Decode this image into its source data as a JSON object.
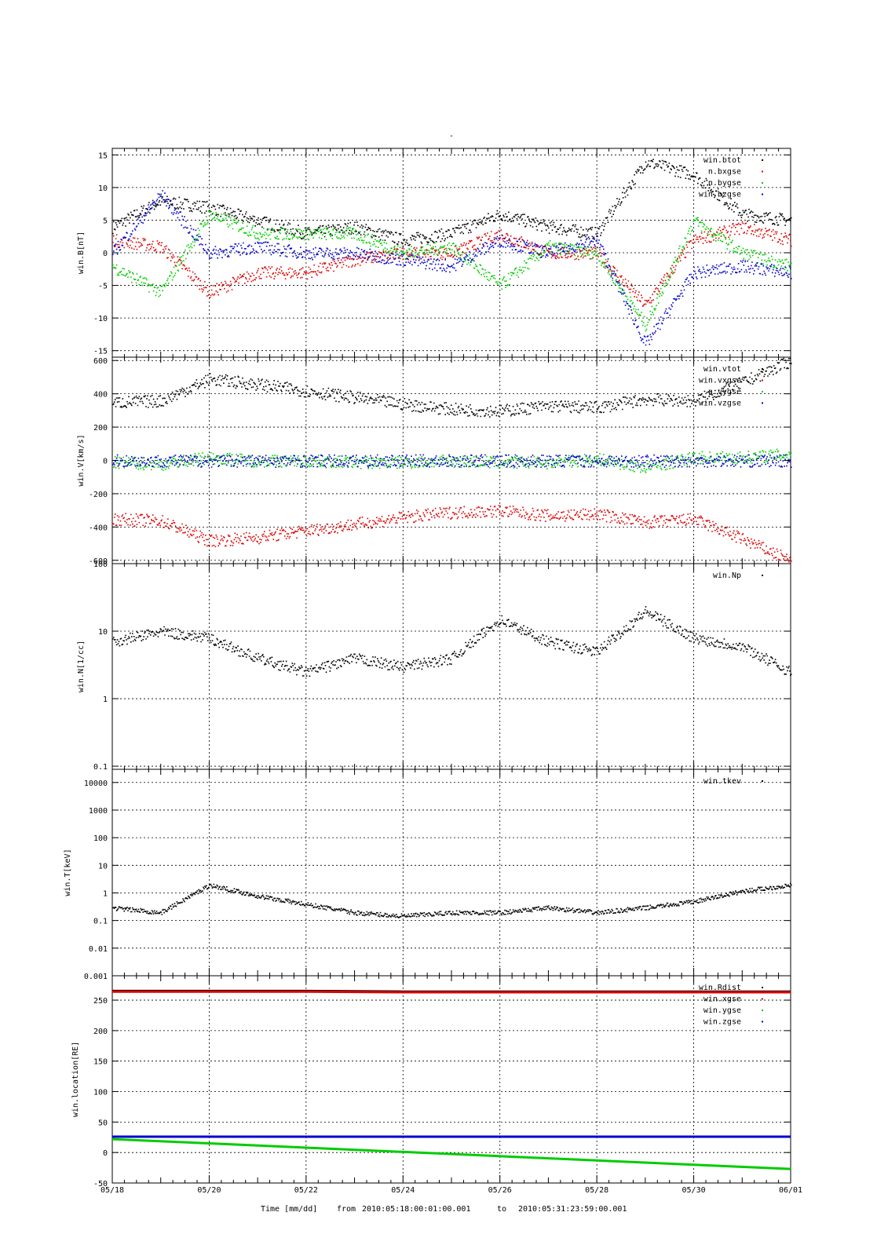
{
  "figure_title": "-",
  "footer": {
    "time_label": "Time [mm/dd]",
    "from_label": "from",
    "from_value": "2010:05:18:00:01:00.001",
    "to_label": "to",
    "to_value": "2010:05:31:23:59:00.001"
  },
  "colors": {
    "black": "#000000",
    "red": "#dd0000",
    "green": "#00cc00",
    "blue": "#0000cc"
  },
  "chart_data": [
    {
      "type": "scatter",
      "ylabel": "win.B[nT]",
      "yscale": "linear",
      "ylim": [
        -16,
        16
      ],
      "yticks": [
        -15,
        -10,
        -5,
        0,
        5,
        10,
        15
      ],
      "grid": true,
      "legend_position": "top-right",
      "x": [
        "05/18",
        "05/19",
        "05/20",
        "05/21",
        "05/22",
        "05/23",
        "05/24",
        "05/25",
        "05/26",
        "05/27",
        "05/28",
        "05/29",
        "05/30",
        "05/31",
        "06/01"
      ],
      "series": [
        {
          "name": "win.btot",
          "color": "#000000",
          "values": [
            4,
            8,
            7,
            5,
            3,
            4,
            2,
            3,
            6,
            4,
            3,
            14,
            12,
            6,
            5
          ]
        },
        {
          "name": "win.bxgse",
          "color": "#dd0000",
          "values": [
            2,
            1,
            -6,
            -3,
            -3,
            -1,
            0,
            0,
            3,
            0,
            0,
            -8,
            2,
            4,
            2
          ]
        },
        {
          "name": "win.bygse",
          "color": "#00cc00",
          "values": [
            -2,
            -6,
            6,
            3,
            3,
            3,
            0,
            1,
            -5,
            1,
            0,
            -11,
            5,
            0,
            -2
          ]
        },
        {
          "name": "win.bzgse",
          "color": "#0000cc",
          "values": [
            0,
            9,
            0,
            1,
            0,
            0,
            -1,
            -2,
            2,
            0,
            2,
            -14,
            -3,
            -2,
            -3
          ]
        }
      ],
      "legend_display": [
        "win.btot",
        "n.bxgse",
        "n.bygse",
        "win.bzgse"
      ]
    },
    {
      "type": "scatter",
      "ylabel": "win.V[km/s]",
      "yscale": "linear",
      "ylim": [
        -620,
        620
      ],
      "yticks": [
        -600,
        -400,
        -200,
        0,
        200,
        400,
        600
      ],
      "grid": true,
      "legend_position": "top-right",
      "x": [
        "05/18",
        "05/19",
        "05/20",
        "05/21",
        "05/22",
        "05/23",
        "05/24",
        "05/25",
        "05/26",
        "05/27",
        "05/28",
        "05/29",
        "05/30",
        "05/31",
        "06/01"
      ],
      "series": [
        {
          "name": "win.vtot",
          "color": "#000000",
          "values": [
            350,
            360,
            490,
            460,
            420,
            380,
            340,
            310,
            300,
            330,
            320,
            370,
            360,
            470,
            600
          ]
        },
        {
          "name": "win.vxgse",
          "color": "#dd0000",
          "values": [
            -350,
            -360,
            -480,
            -460,
            -420,
            -380,
            -340,
            -310,
            -300,
            -330,
            -320,
            -370,
            -350,
            -470,
            -600
          ]
        },
        {
          "name": "win.vygse",
          "color": "#00cc00",
          "values": [
            -10,
            -20,
            20,
            0,
            0,
            -10,
            -10,
            0,
            -10,
            -10,
            10,
            -40,
            20,
            20,
            40
          ]
        },
        {
          "name": "win.vzgse",
          "color": "#0000cc",
          "values": [
            0,
            0,
            0,
            0,
            0,
            0,
            0,
            0,
            0,
            0,
            0,
            0,
            0,
            0,
            0
          ]
        }
      ],
      "legend_display": [
        "win.vtot",
        "win.vxgse",
        "n.vygse",
        "win.vzgse"
      ]
    },
    {
      "type": "scatter",
      "ylabel": "win.N[1/cc]",
      "yscale": "log",
      "ylim": [
        0.09,
        100
      ],
      "yticks": [
        0.1,
        1,
        10,
        100
      ],
      "grid": true,
      "legend_position": "top-right",
      "x": [
        "05/18",
        "05/19",
        "05/20",
        "05/21",
        "05/22",
        "05/23",
        "05/24",
        "05/25",
        "05/26",
        "05/27",
        "05/28",
        "05/29",
        "05/30",
        "05/31",
        "06/01"
      ],
      "series": [
        {
          "name": "win.Np",
          "color": "#000000",
          "values": [
            7,
            10,
            8,
            4,
            2.5,
            4,
            3,
            4,
            15,
            7,
            5,
            20,
            8,
            6,
            2.5
          ]
        }
      ],
      "legend_display": [
        "win.Np"
      ]
    },
    {
      "type": "scatter",
      "ylabel": "win.T[keV]",
      "yscale": "log",
      "ylim": [
        0.001,
        30000
      ],
      "yticks": [
        0.001,
        0.01,
        0.1,
        1,
        10,
        100,
        1000,
        10000
      ],
      "grid": true,
      "legend_position": "top-right",
      "x": [
        "05/18",
        "05/19",
        "05/20",
        "05/21",
        "05/22",
        "05/23",
        "05/24",
        "05/25",
        "05/26",
        "05/27",
        "05/28",
        "05/29",
        "05/30",
        "05/31",
        "06/01"
      ],
      "series": [
        {
          "name": "win.tkev",
          "color": "#000000",
          "values": [
            0.3,
            0.2,
            2,
            0.8,
            0.4,
            0.2,
            0.15,
            0.2,
            0.2,
            0.3,
            0.2,
            0.3,
            0.5,
            1.2,
            2
          ]
        }
      ],
      "legend_display": [
        "win.tkev"
      ]
    },
    {
      "type": "line",
      "ylabel": "win.location[RE]",
      "yscale": "linear",
      "ylim": [
        -50,
        290
      ],
      "yticks": [
        -50,
        0,
        50,
        100,
        150,
        200,
        250
      ],
      "grid": true,
      "legend_position": "top-right",
      "xticklabels": [
        "05/18",
        "05/20",
        "05/22",
        "05/24",
        "05/26",
        "05/28",
        "05/30",
        "06/01"
      ],
      "x": [
        "05/18",
        "05/20",
        "05/22",
        "05/24",
        "05/26",
        "05/28",
        "05/30",
        "06/01"
      ],
      "series": [
        {
          "name": "win.Rdist",
          "color": "#000000",
          "values": [
            265,
            265,
            265,
            264,
            264,
            264,
            264,
            264
          ]
        },
        {
          "name": "win.xgse",
          "color": "#dd0000",
          "values": [
            264,
            264,
            264,
            263,
            263,
            263,
            263,
            263
          ]
        },
        {
          "name": "win.ygse",
          "color": "#00cc00",
          "values": [
            22,
            15,
            8,
            1,
            -6,
            -13,
            -20,
            -27
          ]
        },
        {
          "name": "win.zgse",
          "color": "#0000cc",
          "values": [
            26,
            26,
            26,
            26,
            26,
            26,
            26,
            26
          ]
        }
      ],
      "legend_display": [
        "win.Rdist",
        "win.xgse",
        "win.ygse",
        "win.zgse"
      ]
    }
  ]
}
